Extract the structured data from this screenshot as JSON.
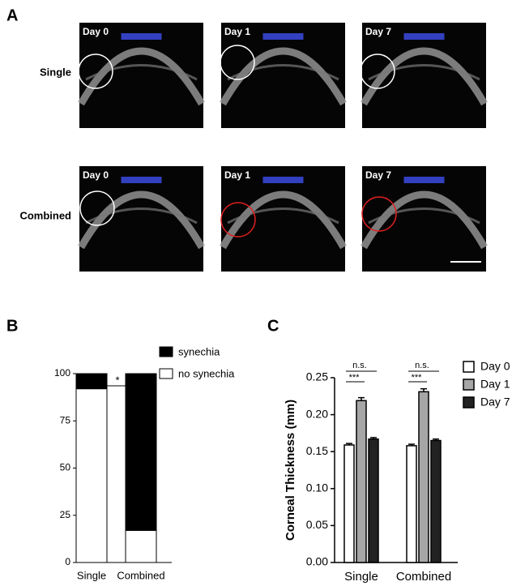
{
  "panels": {
    "a": "A",
    "b": "B",
    "c": "C"
  },
  "image_grid": {
    "rows": [
      {
        "label": "Single",
        "images": [
          "Day 0",
          "Day 1",
          "Day 7"
        ]
      },
      {
        "label": "Combined",
        "images": [
          "Day 0",
          "Day 1",
          "Day 7"
        ]
      }
    ]
  },
  "chart_data": [
    {
      "type": "stacked_bar",
      "categories": [
        "Single",
        "Combined"
      ],
      "series": [
        {
          "name": "no synechia",
          "color": "#ffffff",
          "values": [
            92,
            17
          ]
        },
        {
          "name": "synechia",
          "color": "#000000",
          "values": [
            8,
            83
          ]
        }
      ],
      "ylim": [
        0,
        100
      ],
      "yticks": [
        0,
        25,
        50,
        75,
        100
      ],
      "annotations": [
        "*"
      ]
    },
    {
      "type": "grouped_bar",
      "categories": [
        "Single",
        "Combined"
      ],
      "y_label": "Corneal Thickness (mm)",
      "series": [
        {
          "name": "Day 0",
          "color": "#ffffff",
          "values": [
            0.159,
            0.158
          ],
          "errors": [
            0.002,
            0.002
          ]
        },
        {
          "name": "Day 1",
          "color": "#a6a6a6",
          "values": [
            0.219,
            0.231
          ],
          "errors": [
            0.004,
            0.004
          ]
        },
        {
          "name": "Day 7",
          "color": "#222222",
          "values": [
            0.167,
            0.165
          ],
          "errors": [
            0.002,
            0.002
          ]
        }
      ],
      "ylim": [
        0,
        0.25
      ],
      "yticks": [
        {
          "value": 0,
          "label": "0.00"
        },
        {
          "value": 0.05,
          "label": "0.05"
        },
        {
          "value": 0.1,
          "label": "0.10"
        },
        {
          "value": 0.15,
          "label": "0.15"
        },
        {
          "value": 0.2,
          "label": "0.20"
        },
        {
          "value": 0.25,
          "label": "0.25"
        }
      ],
      "annotations": [
        "n.s.",
        "***",
        "n.s.",
        "***"
      ]
    }
  ]
}
